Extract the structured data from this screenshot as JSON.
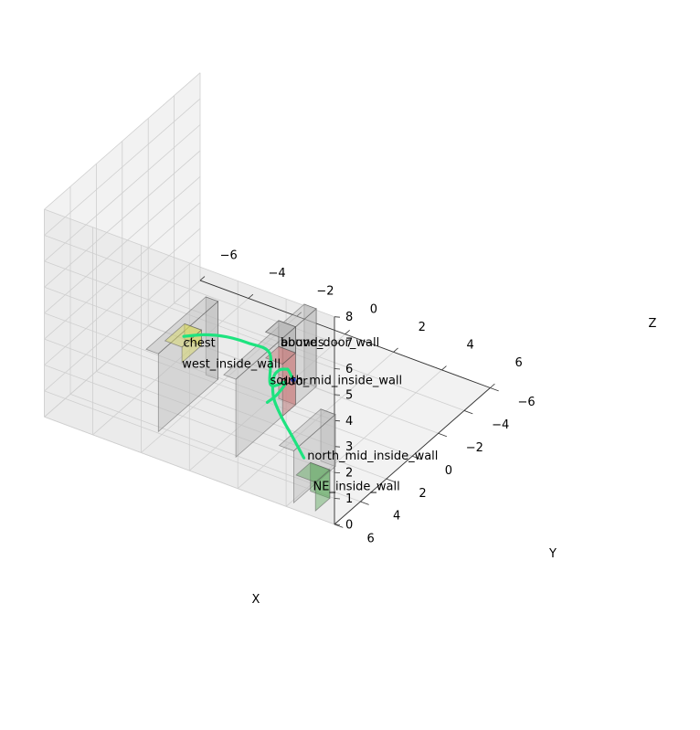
{
  "chart_data": {
    "type": "scatter",
    "projection": "3d",
    "title": "",
    "xlabel": "X",
    "ylabel": "Y",
    "zlabel": "Z",
    "xlim": [
      -6,
      6
    ],
    "ylim": [
      -6,
      6
    ],
    "zlim": [
      0,
      8
    ],
    "x_ticks": [
      "−6",
      "−4",
      "−2",
      "0",
      "2",
      "4",
      "6"
    ],
    "y_ticks": [
      "−6",
      "−4",
      "−2",
      "0",
      "2",
      "4",
      "6"
    ],
    "z_ticks": [
      "0",
      "1",
      "2",
      "3",
      "4",
      "5",
      "6",
      "7",
      "8"
    ],
    "grid": true,
    "objects": [
      {
        "name": "west_inside_wall",
        "color": "#bbbbbb",
        "min": [
          -2.7,
          -0.3,
          0
        ],
        "max": [
          -2.2,
          4.3,
          3.0
        ]
      },
      {
        "name": "south_mid_inside_wall",
        "color": "#bbbbbb",
        "min": [
          0.4,
          -2.1,
          0
        ],
        "max": [
          0.9,
          4.1,
          3.0
        ]
      },
      {
        "name": "north_mid_inside_wall",
        "color": "#bbbbbb",
        "min": [
          3.5,
          2.4,
          0
        ],
        "max": [
          4.1,
          5.6,
          2.0
        ]
      },
      {
        "name": "above_door_wall",
        "color": "#bbbbbb",
        "min": [
          0.2,
          -0.5,
          2.0
        ],
        "max": [
          0.9,
          0.5,
          3.0
        ]
      },
      {
        "name": "bounds",
        "color": "#bbbbbb",
        "min": [
          0.2,
          -0.5,
          2.0
        ],
        "max": [
          0.9,
          0.5,
          3.0
        ]
      },
      {
        "name": "door",
        "color": "#c97a7a",
        "min": [
          0.2,
          -0.5,
          0
        ],
        "max": [
          0.9,
          0.5,
          2.0
        ]
      },
      {
        "name": "chest",
        "color": "#d6d65a",
        "min": [
          -4.5,
          -2.0,
          0
        ],
        "max": [
          -3.8,
          -0.5,
          0.6
        ]
      },
      {
        "name": "NE_inside_wall",
        "color": "#5aa65a",
        "min": [
          4.2,
          4.5,
          0
        ],
        "max": [
          5.0,
          5.6,
          1.1
        ]
      }
    ],
    "series": [
      {
        "color": "#1ee37f",
        "x": [
          -4.1,
          -3.06,
          -2.02,
          -0.98,
          0.06,
          0.1,
          0.72,
          0.37,
          0.0
        ],
        "y": [
          -1.2,
          -0.91,
          -0.63,
          -0.34,
          -0.06,
          -0.06,
          -0.06,
          -0.04,
          0.0
        ],
        "z": [
          0.6,
          1.15,
          1.55,
          1.8,
          1.9,
          0.7,
          1.0,
          0.4,
          0.0
        ]
      },
      {
        "color": "#1ee37f",
        "x": [
          0.0,
          0.5,
          1.0,
          1.3,
          1.6,
          2.3,
          3.0,
          3.6,
          4.2
        ],
        "y": [
          -2.0,
          -0.7,
          0.4,
          1.5,
          2.5,
          3.8,
          4.5,
          4.8,
          5.0
        ],
        "z": [
          0.0,
          1.1,
          1.8,
          2.35,
          2.6,
          2.65,
          2.45,
          2.05,
          1.5
        ]
      }
    ],
    "markers": [
      {
        "name": "",
        "x": 0.0,
        "y": -2.0,
        "z": 0.0,
        "color": "#1f3fd6"
      }
    ]
  }
}
